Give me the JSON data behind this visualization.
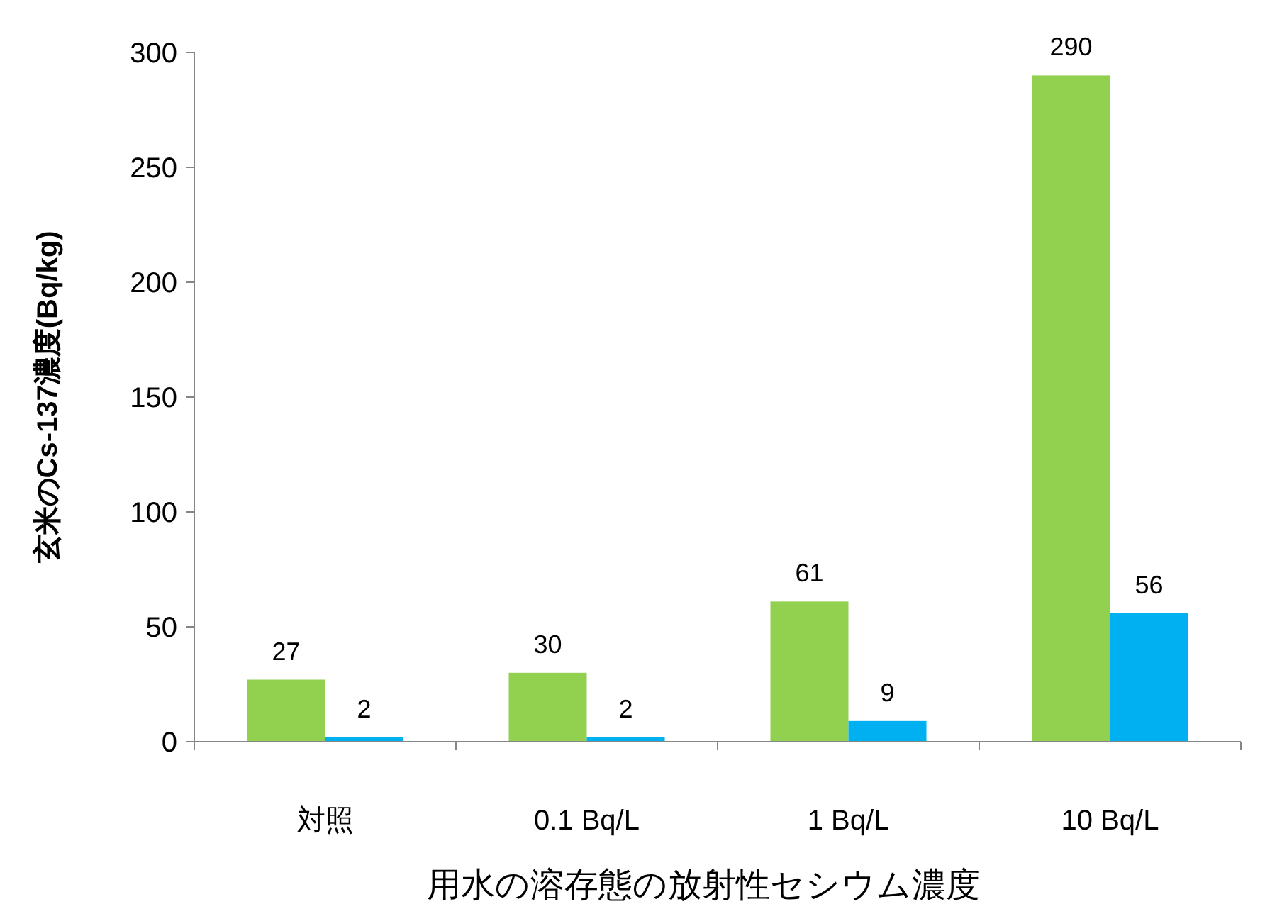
{
  "chart_data": {
    "type": "bar",
    "xlabel": "用水の溶存態の放射性セシウム濃度",
    "ylabel": "玄米のCs-137濃度(Bq/kg)",
    "categories": [
      "対照",
      "0.1 Bq/L",
      "1 Bq/L",
      "10 Bq/L"
    ],
    "series": [
      {
        "color": "#92d050",
        "values": [
          27,
          30,
          61,
          290
        ]
      },
      {
        "color": "#00b0f0",
        "values": [
          2,
          2,
          9,
          56
        ]
      }
    ],
    "ylim": [
      0,
      300
    ],
    "yticks": [
      0,
      50,
      100,
      150,
      200,
      250,
      300
    ],
    "data_labels": true
  }
}
